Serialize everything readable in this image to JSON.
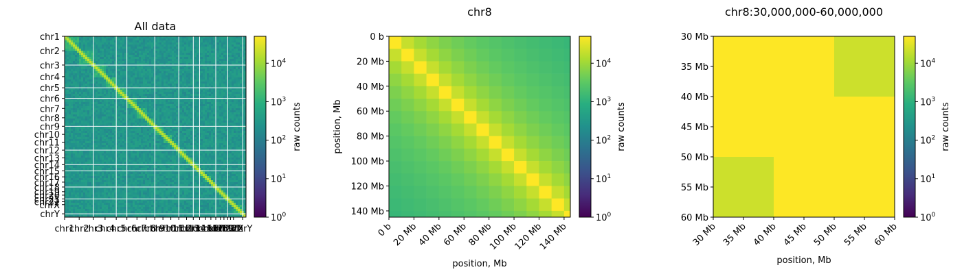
{
  "chart_data": [
    {
      "type": "heatmap",
      "title": "All data",
      "xlabel": "",
      "ylabel": "",
      "row_labels": [
        "chr1",
        "chr2",
        "chr3",
        "chr4",
        "chr5",
        "chr6",
        "chr7",
        "chr8",
        "chr9",
        "chr10",
        "chr11",
        "chr12",
        "chr13",
        "chr14",
        "chr15",
        "chr16",
        "chr17",
        "chr18",
        "chr19",
        "chr20",
        "chr21",
        "chr22",
        "chrX",
        "chrY"
      ],
      "col_labels": [
        "chr1",
        "chr2",
        "chr3",
        "chr4",
        "chr5",
        "chr6",
        "chr7",
        "chr8",
        "chr9",
        "chr10",
        "chr11",
        "chr12",
        "chr13",
        "chr14",
        "chr15",
        "chr16",
        "chr17",
        "chr18",
        "chr19",
        "chr20",
        "chr21",
        "chr22",
        "chrX",
        "chrY"
      ],
      "colorbar": {
        "label": "raw counts",
        "scale": "log",
        "range": [
          1,
          50000
        ],
        "ticks": [
          "10^0",
          "10^1",
          "10^2",
          "10^3",
          "10^4"
        ]
      },
      "approx_value": {
        "diagonal": 20000,
        "intra_chromosome": 1000,
        "inter_chromosome": 300
      }
    },
    {
      "type": "heatmap",
      "title": "chr8",
      "xlabel": "position, Mb",
      "ylabel": "position, Mb",
      "x_ticks": [
        "0 b",
        "20 Mb",
        "40 Mb",
        "60 Mb",
        "80 Mb",
        "100 Mb",
        "120 Mb",
        "140 Mb"
      ],
      "y_ticks": [
        "0 b",
        "20 Mb",
        "40 Mb",
        "60 Mb",
        "80 Mb",
        "100 Mb",
        "120 Mb",
        "140 Mb"
      ],
      "range_mb": [
        0,
        145
      ],
      "bin_size_mb": 10,
      "colorbar": {
        "label": "raw counts",
        "scale": "log",
        "range": [
          1,
          50000
        ],
        "ticks": [
          "10^0",
          "10^1",
          "10^2",
          "10^3",
          "10^4"
        ]
      },
      "approx_value": {
        "diagonal": 50000,
        "off_diagonal_min": 800
      }
    },
    {
      "type": "heatmap",
      "title": "chr8:30,000,000-60,000,000",
      "xlabel": "position, Mb",
      "ylabel": "",
      "x_ticks": [
        "30 Mb",
        "35 Mb",
        "40 Mb",
        "45 Mb",
        "50 Mb",
        "55 Mb",
        "60 Mb"
      ],
      "y_ticks": [
        "30 Mb",
        "35 Mb",
        "40 Mb",
        "45 Mb",
        "50 Mb",
        "55 Mb",
        "60 Mb"
      ],
      "colorbar": {
        "label": "raw counts",
        "scale": "log",
        "range": [
          1,
          50000
        ],
        "ticks": [
          "10^0",
          "10^1",
          "10^2",
          "10^3",
          "10^4"
        ]
      },
      "blocks": [
        {
          "x": [
            30,
            50
          ],
          "y": [
            30,
            40
          ],
          "value": 50000
        },
        {
          "x": [
            50,
            60
          ],
          "y": [
            30,
            40
          ],
          "value": 22000
        },
        {
          "x": [
            30,
            40
          ],
          "y": [
            40,
            50
          ],
          "value": 50000
        },
        {
          "x": [
            40,
            50
          ],
          "y": [
            40,
            50
          ],
          "value": 50000
        },
        {
          "x": [
            50,
            60
          ],
          "y": [
            40,
            50
          ],
          "value": 50000
        },
        {
          "x": [
            30,
            40
          ],
          "y": [
            50,
            60
          ],
          "value": 22000
        },
        {
          "x": [
            40,
            60
          ],
          "y": [
            50,
            60
          ],
          "value": 50000
        }
      ]
    }
  ]
}
